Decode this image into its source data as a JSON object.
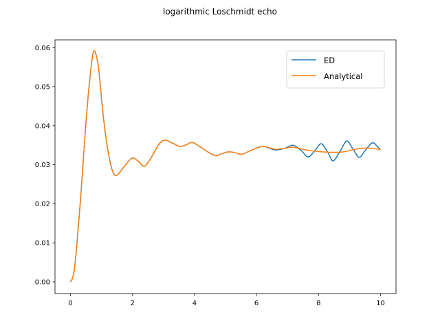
{
  "figure": {
    "title": "logarithmic Loschmidt echo"
  },
  "colors": {
    "ED": "#1f77b4",
    "Analytical": "#ff7f0e"
  },
  "legend": {
    "items": [
      {
        "label": "ED",
        "color": "#1f77b4"
      },
      {
        "label": "Analytical",
        "color": "#ff7f0e"
      }
    ],
    "position": "upper right"
  },
  "chart_data": {
    "type": "line",
    "title": "logarithmic Loschmidt echo",
    "xlabel": "",
    "ylabel": "",
    "xlim": [
      -0.5,
      10.5
    ],
    "ylim": [
      -0.003,
      0.062
    ],
    "xticks": [
      0,
      2,
      4,
      6,
      8,
      10
    ],
    "xtick_labels": [
      "0",
      "2",
      "4",
      "6",
      "8",
      "10"
    ],
    "yticks": [
      0.0,
      0.01,
      0.02,
      0.03,
      0.04,
      0.05,
      0.06
    ],
    "ytick_labels": [
      "0.00",
      "0.01",
      "0.02",
      "0.03",
      "0.04",
      "0.05",
      "0.06"
    ],
    "grid": false,
    "legend_position": "upper right",
    "series": [
      {
        "name": "ED",
        "color": "#1f77b4",
        "x": [
          0,
          0.1,
          0.2,
          0.35,
          0.5,
          0.65,
          0.76,
          0.9,
          1.05,
          1.2,
          1.35,
          1.49,
          1.7,
          1.98,
          2.2,
          2.38,
          2.6,
          2.85,
          3.04,
          3.3,
          3.53,
          3.73,
          3.93,
          4.2,
          4.64,
          4.9,
          5.1,
          5.3,
          5.53,
          5.8,
          6.2,
          6.6,
          6.9,
          7.18,
          7.45,
          7.67,
          7.9,
          8.09,
          8.3,
          8.47,
          8.7,
          8.91,
          9.1,
          9.31,
          9.5,
          9.73,
          9.9,
          10.0
        ],
        "y": [
          0.0,
          0.002,
          0.009,
          0.024,
          0.041,
          0.054,
          0.0592,
          0.055,
          0.043,
          0.034,
          0.0285,
          0.0273,
          0.0292,
          0.0317,
          0.0308,
          0.0296,
          0.0318,
          0.0352,
          0.0363,
          0.0355,
          0.0347,
          0.0351,
          0.0357,
          0.0345,
          0.0324,
          0.0329,
          0.0333,
          0.0331,
          0.0327,
          0.0336,
          0.0347,
          0.0338,
          0.0342,
          0.035,
          0.0336,
          0.032,
          0.0338,
          0.0354,
          0.0332,
          0.031,
          0.0335,
          0.0361,
          0.0342,
          0.0319,
          0.0336,
          0.0356,
          0.0347,
          0.0338
        ]
      },
      {
        "name": "Analytical",
        "color": "#ff7f0e",
        "x": [
          0,
          0.1,
          0.2,
          0.35,
          0.5,
          0.65,
          0.76,
          0.9,
          1.05,
          1.2,
          1.35,
          1.49,
          1.7,
          1.98,
          2.2,
          2.38,
          2.6,
          2.85,
          3.04,
          3.3,
          3.53,
          3.73,
          3.93,
          4.2,
          4.64,
          4.9,
          5.1,
          5.3,
          5.53,
          5.8,
          6.2,
          6.6,
          6.9,
          7.18,
          7.6,
          8.0,
          8.4,
          8.8,
          9.2,
          9.6,
          10.0
        ],
        "y": [
          0.0,
          0.002,
          0.009,
          0.024,
          0.041,
          0.054,
          0.0592,
          0.055,
          0.043,
          0.034,
          0.0285,
          0.0273,
          0.0292,
          0.0317,
          0.0308,
          0.0296,
          0.0318,
          0.0352,
          0.0363,
          0.0355,
          0.0347,
          0.0351,
          0.0357,
          0.0345,
          0.0324,
          0.0329,
          0.0333,
          0.0331,
          0.0327,
          0.0336,
          0.0347,
          0.034,
          0.0342,
          0.0345,
          0.0338,
          0.0334,
          0.0332,
          0.0333,
          0.034,
          0.0343,
          0.0339
        ]
      }
    ]
  }
}
